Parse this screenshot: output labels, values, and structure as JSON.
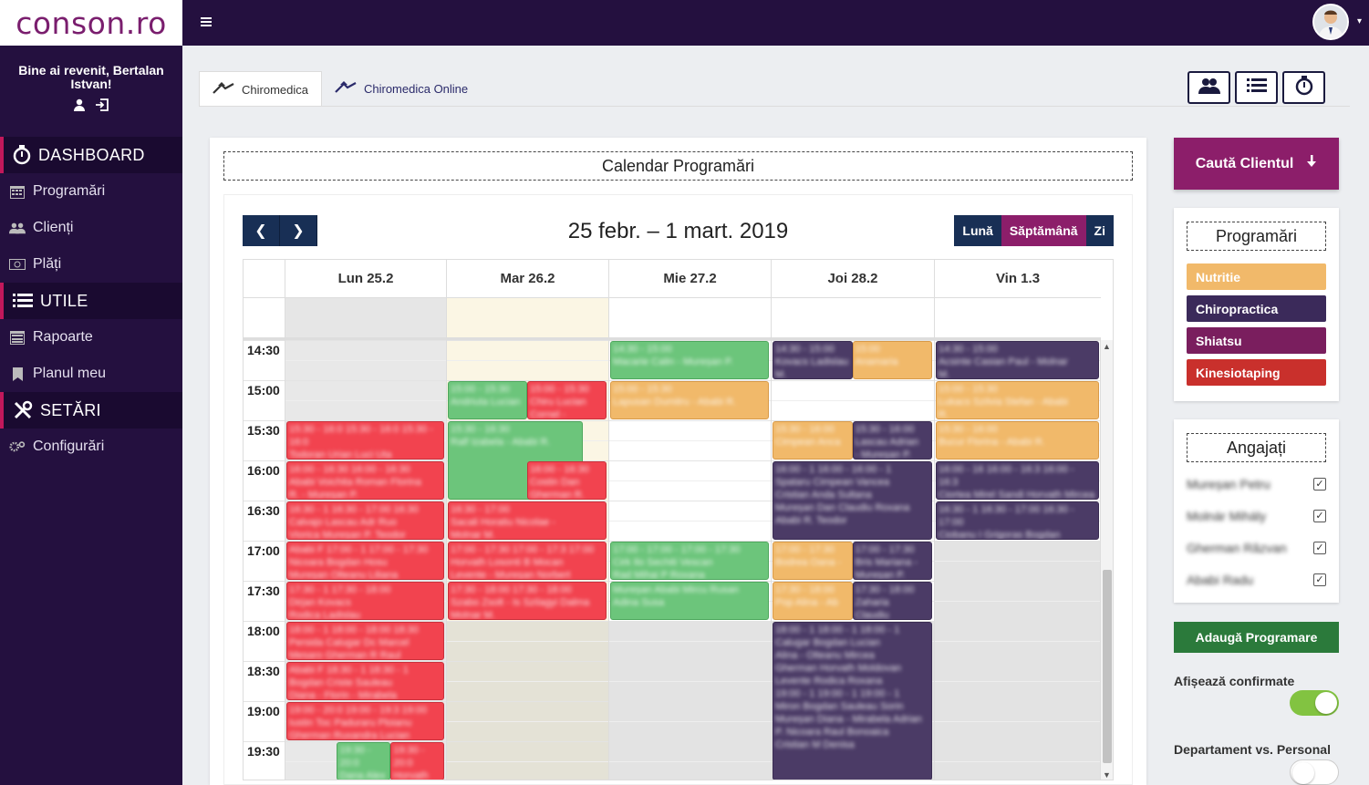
{
  "app": {
    "logo": "conson.ro",
    "welcome": "Bine ai revenit, Bertalan Istvan!"
  },
  "sidebar": {
    "sections": [
      {
        "title": "DASHBOARD",
        "icon": "stopwatch-icon",
        "items": [
          {
            "label": "Programări",
            "icon": "calendar-icon"
          },
          {
            "label": "Clienți",
            "icon": "users-icon"
          },
          {
            "label": "Plăți",
            "icon": "money-icon"
          }
        ]
      },
      {
        "title": "UTILE",
        "icon": "list-icon",
        "items": [
          {
            "label": "Rapoarte",
            "icon": "report-icon"
          },
          {
            "label": "Planul meu",
            "icon": "bookmark-icon"
          }
        ]
      },
      {
        "title": "SETĂRI",
        "icon": "tools-icon",
        "items": [
          {
            "label": "Configurări",
            "icon": "gears-icon"
          }
        ]
      }
    ]
  },
  "tabs": [
    {
      "label": "Chiromedica",
      "active": true
    },
    {
      "label": "Chiromedica Online",
      "active": false
    }
  ],
  "toolbar_icons": [
    "users-icon",
    "list-icon",
    "stopwatch-icon"
  ],
  "panel": {
    "title": "Calendar Programări"
  },
  "calendar": {
    "range": "25 febr. – 1 mart. 2019",
    "views": [
      {
        "label": "Lună",
        "active": false
      },
      {
        "label": "Săptămână",
        "active": true
      },
      {
        "label": "Zi",
        "active": false
      }
    ],
    "days": [
      "Lun 25.2",
      "Mar 26.2",
      "Mie 27.2",
      "Joi 28.2",
      "Vin 1.3"
    ],
    "times": [
      "14:30",
      "15:00",
      "15:30",
      "16:00",
      "16:30",
      "17:00",
      "17:30",
      "18:00",
      "18:30",
      "19:00",
      "19:30"
    ],
    "events": [
      {
        "day": 0,
        "start": "15:30",
        "end": "16:00",
        "color": "red",
        "lines": [
          "15:30 - 16:0 15:30 - 16:0 15:30 - 16:0",
          "Todoran Urian Luci Uta",
          "Mureșan I Gherman Catalin"
        ]
      },
      {
        "day": 0,
        "start": "16:00",
        "end": "16:30",
        "color": "red",
        "lines": [
          "16:00 - 16:30 16:00 - 16:30",
          "Ababi Voichita Roman Florina",
          "R. - Mureșan P."
        ]
      },
      {
        "day": 0,
        "start": "16:30",
        "end": "17:00",
        "color": "red",
        "lines": [
          "16:30 - 1 16:30 - 17:00 16:30",
          "Calvajo Lascau Adr Ruo",
          "Viorica Mureșan P. Teodor"
        ]
      },
      {
        "day": 0,
        "start": "17:00",
        "end": "17:30",
        "color": "red",
        "lines": [
          "Ababi F 17:00 - 1 17:00 - 17:30",
          "Nicoara Bogdan Hosu",
          "Mureșan Olteanu Liliana"
        ]
      },
      {
        "day": 0,
        "start": "17:30",
        "end": "18:00",
        "color": "red",
        "lines": [
          "17:30 - 1 17:30 - 18:00",
          "Dirjan Kovacs",
          "Rodica Ladislau"
        ]
      },
      {
        "day": 0,
        "start": "18:00",
        "end": "18:30",
        "color": "red",
        "lines": [
          "18:00 - 1 18:00 - 18:00 18:30",
          "Persida Calugar Dc Marcel",
          "Mesaro Gherman R Raul"
        ]
      },
      {
        "day": 0,
        "start": "18:30",
        "end": "19:00",
        "color": "red",
        "lines": [
          "Ababi F 18:30 - 1 18:30 - 1",
          "Bogdan Criste Sauleau",
          "Diana - Florin - Mirabela"
        ]
      },
      {
        "day": 0,
        "start": "19:00",
        "end": "19:30",
        "color": "red",
        "lines": [
          "19:00 - 20:0 19:00 - 19:3 19:00",
          "Iustin Toc Paduraru Ploianu",
          "Gherman Ruxandra Lucian"
        ]
      },
      {
        "day": 0,
        "start": "19:30",
        "end": "20:00",
        "color": "green",
        "offset": 0.32,
        "width": 0.34,
        "lines": [
          "19:30 - 20:0",
          "Dana Alex",
          "Vasile"
        ]
      },
      {
        "day": 0,
        "start": "19:30",
        "end": "20:00",
        "color": "red",
        "offset": 0.66,
        "width": 0.34,
        "lines": [
          "19:30 - 20:0",
          "Horvath",
          "Levente -"
        ]
      },
      {
        "day": 1,
        "start": "15:00",
        "end": "15:30",
        "color": "green",
        "width": 0.5,
        "lines": [
          "15:00 - 15:30",
          "Andriuta Lucian"
        ]
      },
      {
        "day": 1,
        "start": "15:00",
        "end": "15:30",
        "color": "red",
        "offset": 0.5,
        "width": 0.5,
        "lines": [
          "15:00 - 15:30",
          "Chiru Lucian",
          "Cornel -"
        ]
      },
      {
        "day": 1,
        "start": "15:30",
        "end": "16:30",
        "color": "green",
        "width": 0.85,
        "lines": [
          "15:30 - 16:30",
          "Ralf Izabela - Ababi R."
        ]
      },
      {
        "day": 1,
        "start": "16:00",
        "end": "16:30",
        "color": "red",
        "offset": 0.5,
        "width": 0.5,
        "lines": [
          "16:00 - 16:30",
          "Costin Dan",
          "Gherman R."
        ]
      },
      {
        "day": 1,
        "start": "16:30",
        "end": "17:00",
        "color": "red",
        "lines": [
          "16:30 - 17:00",
          "Sacali Horatiu Nicolae -",
          "Molnar M."
        ]
      },
      {
        "day": 1,
        "start": "17:00",
        "end": "17:30",
        "color": "red",
        "lines": [
          "17:00 - 17:30 17:00 - 17:3 17:00",
          "Horvath Losonti B Mocan",
          "Levente - Mureșan Norbert"
        ]
      },
      {
        "day": 1,
        "start": "17:30",
        "end": "18:00",
        "color": "red",
        "lines": [
          "17:30 - 18:00 17:30 - 18:00",
          "Szabo Zsolt - Is Szilagyi Dalma",
          "Molnar M."
        ]
      },
      {
        "day": 2,
        "start": "14:30",
        "end": "15:00",
        "color": "green",
        "lines": [
          "14:30 - 15:00",
          "Macarie Calin - Mureșan P."
        ]
      },
      {
        "day": 2,
        "start": "15:00",
        "end": "15:30",
        "color": "orange",
        "lines": [
          "15:00 - 15:30",
          "Lapusan Dumitru - Ababi R."
        ]
      },
      {
        "day": 2,
        "start": "17:00",
        "end": "17:30",
        "color": "green",
        "lines": [
          "17:00 - 17:00 - 17:00 - 17:30",
          "Cirk Ilo Sechiti Vescan",
          "Rad Mihai P Roxana"
        ]
      },
      {
        "day": 2,
        "start": "17:30",
        "end": "18:00",
        "color": "green",
        "lines": [
          "Mureșan Ababi Mircu Rusan",
          "Adina Susa"
        ]
      },
      {
        "day": 3,
        "start": "14:30",
        "end": "15:00",
        "color": "navy",
        "width": 0.5,
        "lines": [
          "14:30 - 15:00",
          "Kovacs Ladislau",
          "M."
        ]
      },
      {
        "day": 3,
        "start": "14:30",
        "end": "15:00",
        "color": "orange",
        "offset": 0.5,
        "width": 0.5,
        "lines": [
          "15:00",
          "Anamaria"
        ]
      },
      {
        "day": 3,
        "start": "15:30",
        "end": "16:00",
        "color": "orange",
        "width": 0.5,
        "lines": [
          "15:30 - 16:00",
          "Cimpean Anca"
        ]
      },
      {
        "day": 3,
        "start": "15:30",
        "end": "16:00",
        "color": "navy",
        "offset": 0.5,
        "width": 0.5,
        "lines": [
          "15:30 - 16:00",
          "Lascau Adrian",
          "- Mureșan P."
        ]
      },
      {
        "day": 3,
        "start": "16:00",
        "end": "17:00",
        "color": "navy",
        "lines": [
          "16:00 - 1 16:00 - 16:00 - 1",
          "Spataru Cimpean Vancea",
          "Cristian Anda Sultana",
          "Mureșan Dan Claudiu Roxana",
          "Ababi R. Teodor"
        ]
      },
      {
        "day": 3,
        "start": "17:00",
        "end": "17:30",
        "color": "orange",
        "width": 0.5,
        "lines": [
          "17:00 - 17:30",
          "Bodrea Oana -"
        ]
      },
      {
        "day": 3,
        "start": "17:00",
        "end": "17:30",
        "color": "navy",
        "offset": 0.5,
        "width": 0.5,
        "lines": [
          "17:00 - 17:30",
          "Bris Mariana -",
          "Mureșan P."
        ]
      },
      {
        "day": 3,
        "start": "17:30",
        "end": "18:00",
        "color": "orange",
        "width": 0.5,
        "lines": [
          "17:30 - 18:00",
          "Pop Alina - Ab"
        ]
      },
      {
        "day": 3,
        "start": "17:30",
        "end": "18:00",
        "color": "navy",
        "offset": 0.5,
        "width": 0.5,
        "lines": [
          "17:30 - 18:00",
          "Zaharia",
          "Claudiu"
        ]
      },
      {
        "day": 3,
        "start": "18:00",
        "end": "20:00",
        "color": "navy",
        "lines": [
          "18:00 - 1 18:00 - 1 18:00 - 1",
          "Calugar Bogdan Lucian",
          "Alina - Olteanu Mircea",
          "Gherman Horvath Moldovan",
          "Levente Rodica Roxana",
          "19:00 - 1 19:00 - 1 19:00 - 1",
          "Miron Bogdan Sauleau Sorin",
          "Mureșan Diana - Mirabela Adrian",
          "P. Nicoara Raul Bonoaica",
          "Cristian M Denisa"
        ]
      },
      {
        "day": 4,
        "start": "14:30",
        "end": "15:00",
        "color": "navy",
        "lines": [
          "14:30 - 15:00",
          "Acsinte Casian Paul - Molnar",
          "M."
        ]
      },
      {
        "day": 4,
        "start": "15:00",
        "end": "15:30",
        "color": "orange",
        "lines": [
          "15:00 - 15:30",
          "Lukacs Szilvia Stefan - Ababi",
          "R."
        ]
      },
      {
        "day": 4,
        "start": "15:30",
        "end": "16:00",
        "color": "orange",
        "lines": [
          "15:30 - 16:00",
          "Bucur Florina - Ababi R."
        ]
      },
      {
        "day": 4,
        "start": "16:00",
        "end": "16:30",
        "color": "navy",
        "lines": [
          "16:00 - 16 16:00 - 16:3 16:00 - 16:3",
          "Ciortea Mirel Sandi Horvath Mircea",
          "Ababi R. Nicolae - Ababi"
        ]
      },
      {
        "day": 4,
        "start": "16:30",
        "end": "17:00",
        "color": "navy",
        "lines": [
          "16:30 - 1 16:30 - 17:00 16:30 - 17:00",
          "Ciobanu I Grigoras Bogdan",
          "Mureșan I - Molnar I Dumitru"
        ]
      }
    ]
  },
  "right": {
    "search_label": "Caută Clientul",
    "legend_title": "Programări",
    "legend": [
      {
        "label": "Nutritie",
        "color": "#f1b96a"
      },
      {
        "label": "Chiropractica",
        "color": "#3b2a5a"
      },
      {
        "label": "Shiatsu",
        "color": "#7a1e5e"
      },
      {
        "label": "Kinesiotaping",
        "color": "#c9302c"
      }
    ],
    "employees_title": "Angajați",
    "employees": [
      {
        "name": "Mureșan Petru",
        "checked": true
      },
      {
        "name": "Molnár Mihály",
        "checked": true
      },
      {
        "name": "Gherman Răzvan",
        "checked": true
      },
      {
        "name": "Ababi Radu",
        "checked": true
      }
    ],
    "add_label": "Adaugă Programare",
    "show_confirmed_label": "Afișează confirmate",
    "show_confirmed": true,
    "dept_label": "Departament vs. Personal",
    "dept": false
  },
  "colors": {
    "brand": "#8c1e6a",
    "navy": "#182f55",
    "sidebar": "#24103f",
    "add": "#2b7a3b",
    "toggle_on": "#82c341"
  }
}
